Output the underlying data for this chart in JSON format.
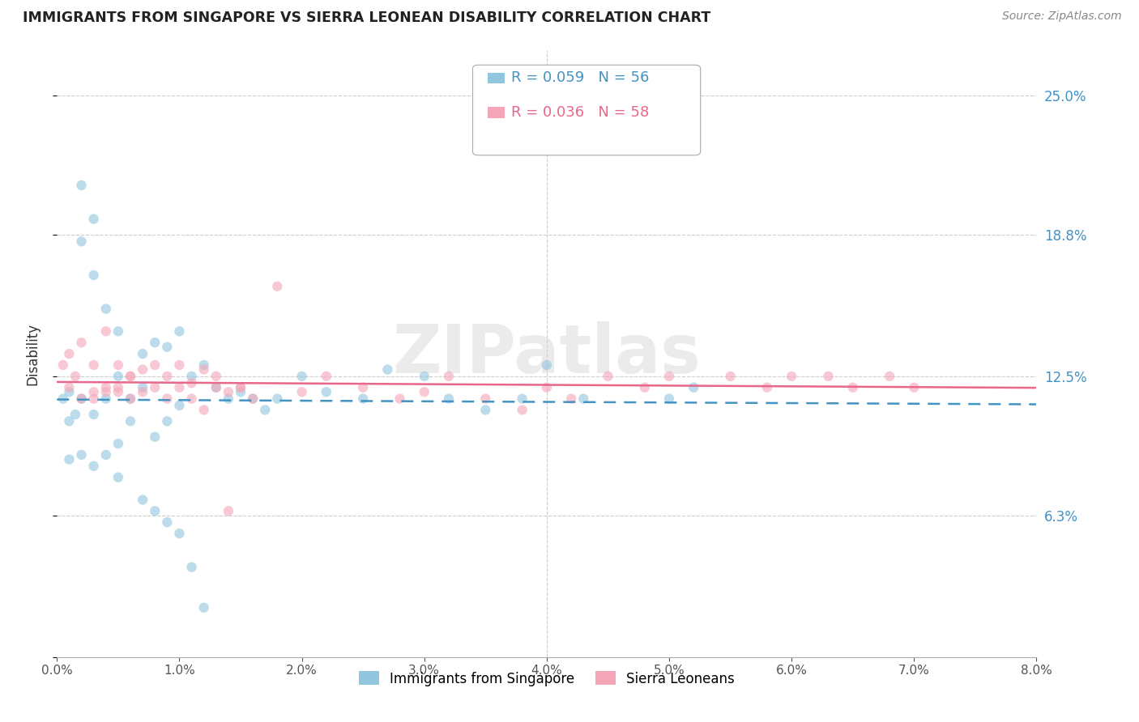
{
  "title": "IMMIGRANTS FROM SINGAPORE VS SIERRA LEONEAN DISABILITY CORRELATION CHART",
  "source": "Source: ZipAtlas.com",
  "ylabel": "Disability",
  "ytick_values": [
    0.0,
    0.063,
    0.125,
    0.188,
    0.25
  ],
  "ytick_labels": [
    "",
    "6.3%",
    "12.5%",
    "18.8%",
    "25.0%"
  ],
  "xtick_values": [
    0.0,
    0.01,
    0.02,
    0.03,
    0.04,
    0.05,
    0.06,
    0.07,
    0.08
  ],
  "xtick_labels": [
    "0.0%",
    "1.0%",
    "2.0%",
    "3.0%",
    "4.0%",
    "5.0%",
    "6.0%",
    "7.0%",
    "8.0%"
  ],
  "xlim": [
    0.0,
    0.08
  ],
  "ylim": [
    0.0,
    0.27
  ],
  "legend_r1": "R = 0.059",
  "legend_n1": "N = 56",
  "legend_r2": "R = 0.036",
  "legend_n2": "N = 58",
  "color_blue": "#92c5de",
  "color_pink": "#f4a6b8",
  "color_line_blue": "#4393c3",
  "color_line_pink": "#e8678a",
  "watermark": "ZIPatlas",
  "singapore_x": [
    0.0005,
    0.001,
    0.001,
    0.0015,
    0.002,
    0.002,
    0.002,
    0.003,
    0.003,
    0.003,
    0.004,
    0.004,
    0.005,
    0.005,
    0.005,
    0.006,
    0.006,
    0.007,
    0.007,
    0.008,
    0.008,
    0.009,
    0.009,
    0.01,
    0.01,
    0.011,
    0.012,
    0.013,
    0.014,
    0.015,
    0.016,
    0.017,
    0.018,
    0.02,
    0.022,
    0.025,
    0.027,
    0.03,
    0.032,
    0.035,
    0.038,
    0.04,
    0.043,
    0.05,
    0.052,
    0.001,
    0.002,
    0.003,
    0.004,
    0.005,
    0.007,
    0.008,
    0.009,
    0.01,
    0.011,
    0.012
  ],
  "singapore_y": [
    0.115,
    0.118,
    0.105,
    0.108,
    0.21,
    0.185,
    0.115,
    0.195,
    0.17,
    0.108,
    0.155,
    0.115,
    0.145,
    0.125,
    0.095,
    0.105,
    0.115,
    0.135,
    0.12,
    0.14,
    0.098,
    0.138,
    0.105,
    0.145,
    0.112,
    0.125,
    0.13,
    0.12,
    0.115,
    0.118,
    0.115,
    0.11,
    0.115,
    0.125,
    0.118,
    0.115,
    0.128,
    0.125,
    0.115,
    0.11,
    0.115,
    0.13,
    0.115,
    0.115,
    0.12,
    0.088,
    0.09,
    0.085,
    0.09,
    0.08,
    0.07,
    0.065,
    0.06,
    0.055,
    0.04,
    0.022
  ],
  "sierraleone_x": [
    0.0005,
    0.001,
    0.001,
    0.0015,
    0.002,
    0.002,
    0.003,
    0.003,
    0.004,
    0.004,
    0.005,
    0.005,
    0.006,
    0.006,
    0.007,
    0.008,
    0.009,
    0.01,
    0.011,
    0.012,
    0.013,
    0.014,
    0.015,
    0.016,
    0.018,
    0.02,
    0.022,
    0.025,
    0.028,
    0.03,
    0.032,
    0.035,
    0.038,
    0.04,
    0.042,
    0.045,
    0.048,
    0.05,
    0.055,
    0.058,
    0.06,
    0.063,
    0.065,
    0.068,
    0.07,
    0.003,
    0.004,
    0.005,
    0.006,
    0.007,
    0.008,
    0.009,
    0.01,
    0.011,
    0.012,
    0.013,
    0.014,
    0.015
  ],
  "sierraleone_y": [
    0.13,
    0.135,
    0.12,
    0.125,
    0.14,
    0.115,
    0.13,
    0.118,
    0.145,
    0.12,
    0.13,
    0.118,
    0.115,
    0.125,
    0.128,
    0.13,
    0.125,
    0.13,
    0.122,
    0.128,
    0.125,
    0.118,
    0.12,
    0.115,
    0.165,
    0.118,
    0.125,
    0.12,
    0.115,
    0.118,
    0.125,
    0.115,
    0.11,
    0.12,
    0.115,
    0.125,
    0.12,
    0.125,
    0.125,
    0.12,
    0.125,
    0.125,
    0.12,
    0.125,
    0.12,
    0.115,
    0.118,
    0.12,
    0.125,
    0.118,
    0.12,
    0.115,
    0.12,
    0.115,
    0.11,
    0.12,
    0.065,
    0.12
  ]
}
